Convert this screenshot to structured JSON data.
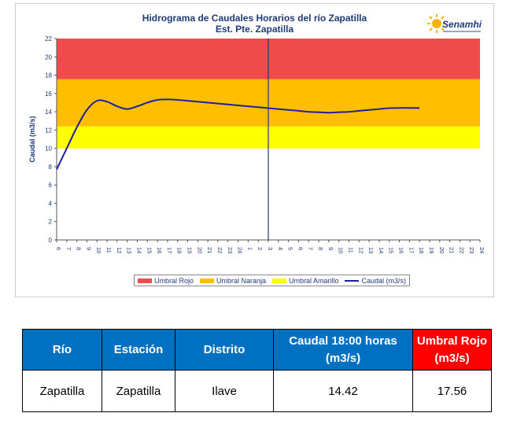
{
  "chart": {
    "title": "Hidrograma de Caudales Horarios del río Zapatilla",
    "subtitle": "Est. Pte. Zapatilla",
    "logo_text": "Senamhi",
    "legend": [
      "Umbral Rojo",
      "Umbral Naranja",
      "Umbral Amarillo",
      "Caudal (m3/s)"
    ]
  },
  "colors": {
    "rojo": "#f04b4b",
    "naranja": "#ffbf00",
    "amarillo": "#ffff00",
    "caudal": "#1f1f9e",
    "now_line": "#1f3a78"
  },
  "chart_data": {
    "type": "line",
    "ylabel": "Caudal  (m3/s)",
    "xlabel": "",
    "ylim": [
      0,
      22
    ],
    "yticks": [
      0,
      2,
      4,
      6,
      8,
      10,
      12,
      14,
      16,
      18,
      20,
      22
    ],
    "xticks": [
      "6",
      "7",
      "8",
      "9",
      "10",
      "11",
      "12",
      "13",
      "14",
      "15",
      "16",
      "17",
      "18",
      "19",
      "20",
      "21",
      "22",
      "23",
      "24",
      "1",
      "2",
      "3",
      "4",
      "5",
      "6",
      "7",
      "8",
      "9",
      "10",
      "11",
      "12",
      "13",
      "14",
      "15",
      "16",
      "17",
      "18",
      "19",
      "20",
      "21",
      "22",
      "23",
      "24"
    ],
    "thresholds": [
      {
        "name": "Umbral Amarillo",
        "from": 10,
        "to": 12.4
      },
      {
        "name": "Umbral Naranja",
        "from": 12.4,
        "to": 17.56
      },
      {
        "name": "Umbral Rojo",
        "from": 17.56,
        "to": 22
      }
    ],
    "current_time_index": 21,
    "series": [
      {
        "name": "Caudal (m3/s)",
        "x_index": [
          0,
          1,
          2,
          3,
          4,
          5,
          6,
          7,
          8,
          9,
          10,
          11,
          12,
          13,
          14,
          15,
          16,
          17,
          18,
          19,
          20,
          21,
          22,
          23,
          24,
          25,
          26,
          27,
          28,
          29,
          30,
          31,
          32,
          33,
          34,
          35,
          36
        ],
        "values": [
          7.7,
          10.0,
          12.3,
          14.2,
          15.2,
          15.1,
          14.6,
          14.3,
          14.6,
          15.0,
          15.3,
          15.35,
          15.3,
          15.2,
          15.1,
          15.0,
          14.9,
          14.8,
          14.7,
          14.6,
          14.5,
          14.4,
          14.3,
          14.2,
          14.1,
          14.0,
          13.95,
          13.9,
          13.95,
          14.0,
          14.1,
          14.2,
          14.3,
          14.4,
          14.42,
          14.42,
          14.42
        ]
      }
    ]
  },
  "table": {
    "headers": [
      "Río",
      "Estación",
      "Distrito",
      "Caudal 18:00 horas (m3/s)",
      "Umbral Rojo (m3/s)"
    ],
    "row": [
      "Zapatilla",
      "Zapatilla",
      "Ilave",
      "14.42",
      "17.56"
    ]
  }
}
